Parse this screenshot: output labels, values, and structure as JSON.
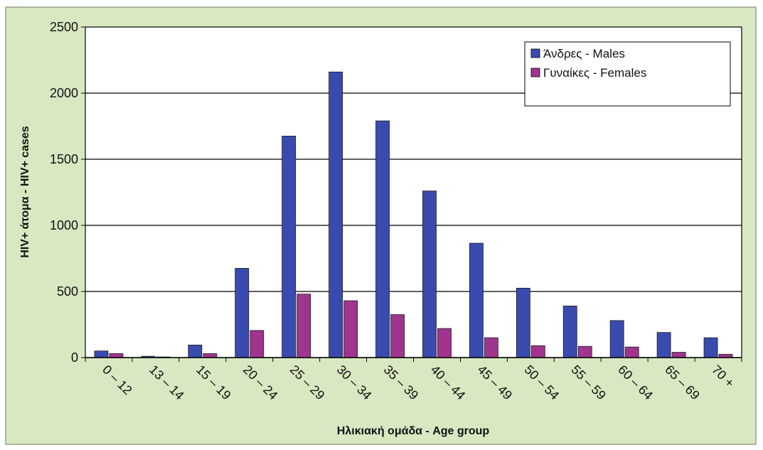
{
  "chart_data": {
    "type": "bar",
    "xlabel": "Ηλικιακή ομάδα - Age group",
    "ylabel": "HIV+ άτομα - HIV+ cases",
    "ylim": [
      0,
      2500
    ],
    "yticks": [
      0,
      500,
      1000,
      1500,
      2000,
      2500
    ],
    "grid": true,
    "legend_position": "top-right",
    "categories": [
      "0 – 12",
      "13 – 14",
      "15 – 19",
      "20 – 24",
      "25 – 29",
      "30 – 34",
      "35 – 39",
      "40 – 44",
      "45 – 49",
      "50 – 54",
      "55 – 59",
      "60 – 64",
      "65 – 69",
      "70 +"
    ],
    "series": [
      {
        "name": "Άνδρες - Males",
        "color": "#3a4bb0",
        "values": [
          50,
          10,
          95,
          675,
          1675,
          2160,
          1790,
          1260,
          865,
          525,
          390,
          280,
          190,
          150
        ]
      },
      {
        "name": "Γυναίκες - Females",
        "color": "#a0358f",
        "values": [
          30,
          5,
          30,
          205,
          480,
          430,
          325,
          220,
          150,
          90,
          85,
          80,
          40,
          25
        ]
      }
    ]
  },
  "colors": {
    "panel_background": "#d8e8c2",
    "plot_background": "#ffffff",
    "frame": "#6f7d55"
  }
}
